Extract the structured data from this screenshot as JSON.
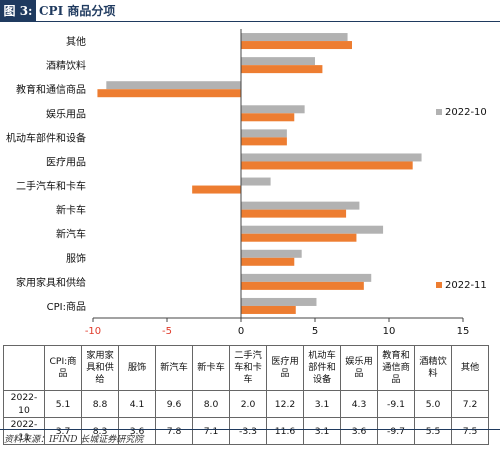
{
  "header": {
    "badge": "图 3:",
    "title": "CPI 商品分项"
  },
  "source": "资料来源：IFIND 长城证券研究院",
  "chart_data": {
    "type": "bar",
    "orientation": "horizontal",
    "categories": [
      "其他",
      "酒精饮料",
      "教育和通信商品",
      "娱乐用品",
      "机动车部件和设备",
      "医疗用品",
      "二手汽车和卡车",
      "新卡车",
      "新汽车",
      "服饰",
      "家用家具和供给",
      "CPI:商品"
    ],
    "series": [
      {
        "name": "2022-10",
        "color": "#b2b2b2",
        "values": [
          7.2,
          5.0,
          -9.1,
          4.3,
          3.1,
          12.2,
          2.0,
          8.0,
          9.6,
          4.1,
          8.8,
          5.1
        ]
      },
      {
        "name": "2022-11",
        "color": "#ed7d31",
        "values": [
          7.5,
          5.5,
          -9.7,
          3.6,
          3.1,
          11.6,
          -3.3,
          7.1,
          7.8,
          3.6,
          8.3,
          3.7
        ]
      }
    ],
    "xlim": [
      -10,
      15
    ],
    "xticks": [
      "-10",
      "-5",
      "0",
      "5",
      "10",
      "15"
    ],
    "grid": false,
    "legend": [
      "2022-10",
      "2022-11"
    ]
  },
  "table": {
    "headers": [
      "CPI:商品",
      "家用家具和供给",
      "服饰",
      "新汽车",
      "新卡车",
      "二手汽车和卡车",
      "医疗用品",
      "机动车部件和设备",
      "娱乐用品",
      "教育和通信商品",
      "酒精饮料",
      "其他"
    ],
    "rows": [
      {
        "label": "2022-10",
        "values": [
          "5.1",
          "8.8",
          "4.1",
          "9.6",
          "8.0",
          "2.0",
          "12.2",
          "3.1",
          "4.3",
          "-9.1",
          "5.0",
          "7.2"
        ]
      },
      {
        "label": "2022-11",
        "values": [
          "3.7",
          "8.3",
          "3.6",
          "7.8",
          "7.1",
          "-3.3",
          "11.6",
          "3.1",
          "3.6",
          "-9.7",
          "5.5",
          "7.5"
        ]
      }
    ]
  }
}
